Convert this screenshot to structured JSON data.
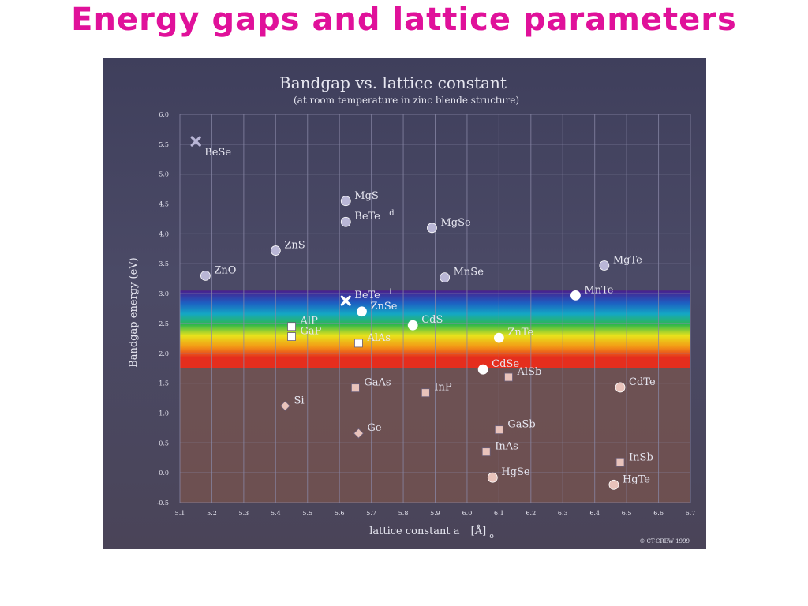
{
  "slide": {
    "title": "Energy gaps and lattice parameters",
    "title_color": "#e0119a"
  },
  "chart_data": {
    "type": "scatter",
    "title": "Bandgap vs. lattice constant",
    "subtitle": "(at room temperature in zinc blende structure)",
    "xlabel": "lattice constant a",
    "xunit": "[Å]",
    "xunit_sub": "o",
    "ylabel": "Bandgap energy (eV)",
    "xlim": [
      5.1,
      6.7
    ],
    "ylim": [
      -0.5,
      6.0
    ],
    "xticks": [
      "5.1",
      "5.2",
      "5.3",
      "5.4",
      "5.5",
      "5.6",
      "5.7",
      "5.8",
      "5.9",
      "6.0",
      "6.1",
      "6.2",
      "6.3",
      "6.4",
      "6.5",
      "6.6",
      "6.7"
    ],
    "yticks": [
      "-0.5",
      "0.0",
      "0.5",
      "1.0",
      "1.5",
      "2.0",
      "2.5",
      "3.0",
      "3.5",
      "4.0",
      "4.5",
      "5.0",
      "5.5",
      "6.0"
    ],
    "grid": true,
    "visible_spectrum_band": [
      1.75,
      3.05
    ],
    "copyright": "© CT-CREW     1999",
    "colors": {
      "panel_top": "#3f3f5c",
      "panel_bottom": "#4a4458",
      "grid": "#8a89a8",
      "text": "#e6e6f0",
      "upper_marker": "#b9b6d6",
      "lower_marker": "#e9c3bb",
      "white_marker": "#ffffff",
      "below_band_tint": "#8a5a48",
      "spectrum_red": "#e52e1d",
      "spectrum_orange": "#f39a16",
      "spectrum_yellow": "#e8e21c",
      "spectrum_green": "#2fb84a",
      "spectrum_cyan": "#14a7c4",
      "spectrum_blue": "#1d5fc2",
      "spectrum_violet": "#4a1f8c"
    },
    "points": [
      {
        "label": "BeSe",
        "x": 5.15,
        "y": 5.55,
        "marker": "cross",
        "color": "upper"
      },
      {
        "label": "MgS",
        "x": 5.62,
        "y": 4.55,
        "marker": "circle",
        "color": "upper"
      },
      {
        "label": "BeTe",
        "x": 5.62,
        "y": 4.2,
        "marker": "circle",
        "color": "upper",
        "tag": "d"
      },
      {
        "label": "MgSe",
        "x": 5.89,
        "y": 4.1,
        "marker": "circle",
        "color": "upper"
      },
      {
        "label": "ZnS",
        "x": 5.4,
        "y": 3.72,
        "marker": "circle",
        "color": "upper"
      },
      {
        "label": "ZnO",
        "x": 5.18,
        "y": 3.3,
        "marker": "circle",
        "color": "upper"
      },
      {
        "label": "MnSe",
        "x": 5.93,
        "y": 3.27,
        "marker": "circle",
        "color": "upper"
      },
      {
        "label": "MgTe",
        "x": 6.43,
        "y": 3.47,
        "marker": "circle",
        "color": "upper"
      },
      {
        "label": "MnTe",
        "x": 6.34,
        "y": 2.97,
        "marker": "circle",
        "color": "white"
      },
      {
        "label": "BeTe",
        "x": 5.62,
        "y": 2.88,
        "marker": "cross",
        "color": "white",
        "tag": "i"
      },
      {
        "label": "ZnSe",
        "x": 5.67,
        "y": 2.7,
        "marker": "circle",
        "color": "white"
      },
      {
        "label": "CdS",
        "x": 5.83,
        "y": 2.47,
        "marker": "circle",
        "color": "white"
      },
      {
        "label": "AlP",
        "x": 5.45,
        "y": 2.45,
        "marker": "square",
        "color": "white"
      },
      {
        "label": "GaP",
        "x": 5.45,
        "y": 2.28,
        "marker": "square",
        "color": "white"
      },
      {
        "label": "AlAs",
        "x": 5.66,
        "y": 2.17,
        "marker": "square",
        "color": "white"
      },
      {
        "label": "ZnTe",
        "x": 6.1,
        "y": 2.26,
        "marker": "circle",
        "color": "white"
      },
      {
        "label": "CdSe",
        "x": 6.05,
        "y": 1.73,
        "marker": "circle",
        "color": "white"
      },
      {
        "label": "AlSb",
        "x": 6.13,
        "y": 1.6,
        "marker": "square",
        "color": "lower"
      },
      {
        "label": "CdTe",
        "x": 6.48,
        "y": 1.43,
        "marker": "circle",
        "color": "lower"
      },
      {
        "label": "GaAs",
        "x": 5.65,
        "y": 1.42,
        "marker": "square",
        "color": "lower"
      },
      {
        "label": "InP",
        "x": 5.87,
        "y": 1.34,
        "marker": "square",
        "color": "lower"
      },
      {
        "label": "Si",
        "x": 5.43,
        "y": 1.12,
        "marker": "diamond",
        "color": "lower"
      },
      {
        "label": "GaSb",
        "x": 6.1,
        "y": 0.72,
        "marker": "square",
        "color": "lower"
      },
      {
        "label": "Ge",
        "x": 5.66,
        "y": 0.66,
        "marker": "diamond",
        "color": "lower"
      },
      {
        "label": "InAs",
        "x": 6.06,
        "y": 0.35,
        "marker": "square",
        "color": "lower"
      },
      {
        "label": "InSb",
        "x": 6.48,
        "y": 0.17,
        "marker": "square",
        "color": "lower"
      },
      {
        "label": "HgSe",
        "x": 6.08,
        "y": -0.08,
        "marker": "circle",
        "color": "lower"
      },
      {
        "label": "HgTe",
        "x": 6.46,
        "y": -0.2,
        "marker": "circle",
        "color": "lower"
      }
    ]
  }
}
